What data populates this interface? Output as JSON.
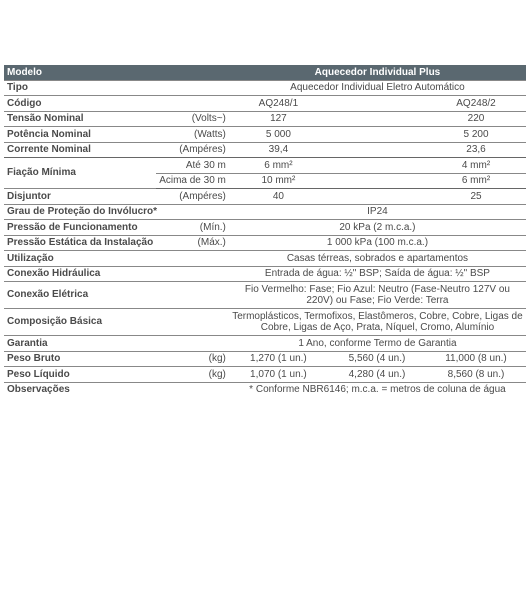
{
  "table": {
    "header": {
      "label_col": "Modelo",
      "value_header": "Aquecedor Individual Plus"
    },
    "rows": [
      {
        "label": "Tipo",
        "unit": "",
        "span": "Aquecedor Individual Eletro Automático",
        "border": true
      },
      {
        "label": "Código",
        "unit": "",
        "vals": [
          "AQ248/1",
          "AQ248/2"
        ],
        "border": true
      },
      {
        "label": "Tensão Nominal",
        "unit": "(Volts~)",
        "vals": [
          "127",
          "220"
        ],
        "border": true
      },
      {
        "label": "Potência Nominal",
        "unit": "(Watts)",
        "vals": [
          "5 000",
          "5 200"
        ],
        "border": true
      },
      {
        "label": "Corrente Nominal",
        "unit": "(Ampéres)",
        "vals": [
          "39,4",
          "23,6"
        ],
        "border": true,
        "thick": true
      },
      {
        "label": "Fiação Mínima",
        "rowspan": 2,
        "unit": "Até 30 m",
        "vals": [
          "6 mm²",
          "4 mm²"
        ],
        "border": true
      },
      {
        "unit": "Acima de 30 m",
        "vals": [
          "10 mm²",
          "6 mm²"
        ],
        "border": true,
        "thick": true
      },
      {
        "label": "Disjuntor",
        "unit": "(Ampéres)",
        "vals": [
          "40",
          "25"
        ],
        "border": true
      },
      {
        "label": "Grau de Proteção do Invólucro*",
        "unit": "",
        "span": "IP24",
        "border": true,
        "colspan_label": 2
      },
      {
        "label": "Pressão de Funcionamento",
        "unit": "(Mín.)",
        "span": "20 kPa (2 m.c.a.)",
        "border": true
      },
      {
        "label": "Pressão Estática da Instalação",
        "unit": "(Máx.)",
        "span": "1 000 kPa (100 m.c.a.)",
        "border": true
      },
      {
        "label": "Utilização",
        "unit": "",
        "span": "Casas térreas, sobrados e apartamentos",
        "border": true,
        "colspan_label": 2
      },
      {
        "label": "Conexão Hidráulica",
        "unit": "",
        "span": "Entrada de água: ½\" BSP; Saída de água: ½\" BSP",
        "border": true,
        "colspan_label": 2
      },
      {
        "label": "Conexão Elétrica",
        "unit": "",
        "span": "Fio Vermelho: Fase; Fio Azul: Neutro (Fase-Neutro 127V ou 220V) ou Fase; Fio Verde: Terra",
        "border": true,
        "colspan_label": 2
      },
      {
        "label": "Composição Básica",
        "unit": "",
        "span": "Termoplásticos, Termofixos, Elastômeros, Cobre, Cobre, Ligas de Cobre, Ligas de Aço, Prata, Níquel, Cromo, Alumínio",
        "border": true,
        "colspan_label": 2
      },
      {
        "label": "Garantia",
        "unit": "",
        "span": "1 Ano, conforme Termo de Garantia",
        "border": true,
        "colspan_label": 2
      },
      {
        "label": "Peso Bruto",
        "unit": "(kg)",
        "triple": [
          "1,270 (1 un.)",
          "5,560 (4 un.)",
          "11,000 (8 un.)"
        ],
        "border": true
      },
      {
        "label": "Peso Líquido",
        "unit": "(kg)",
        "triple": [
          "1,070 (1 un.)",
          "4,280 (4 un.)",
          "8,560 (8 un.)"
        ],
        "border": true
      },
      {
        "label": "Observações",
        "unit": "",
        "span": "* Conforme NBR6146; m.c.a. = metros de coluna de água",
        "border": false,
        "colspan_label": 2
      }
    ]
  },
  "colors": {
    "header_bg": "#5a6870",
    "header_text": "#ffffff",
    "text": "#4a4a4a",
    "border": "#888888"
  }
}
